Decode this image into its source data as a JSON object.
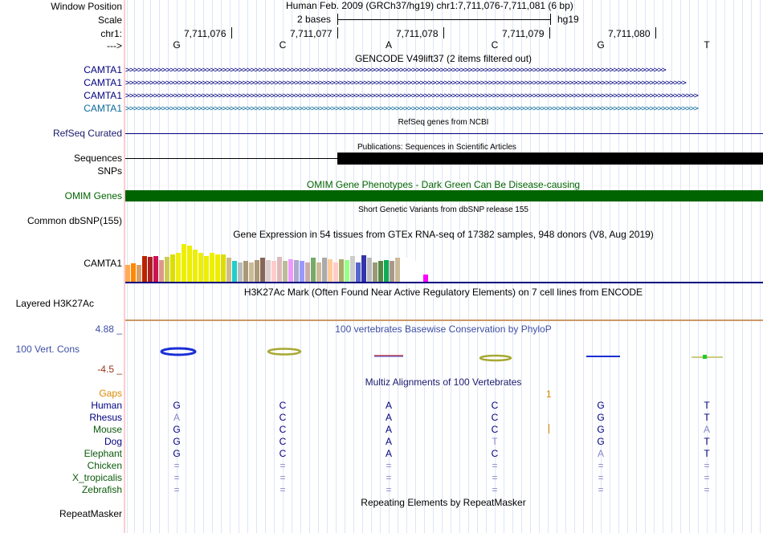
{
  "labels": {
    "window_position": "Window Position",
    "scale": "Scale",
    "chr": "chr1:",
    "arrow": "--->",
    "camta1_1": "CAMTA1",
    "camta1_2": "CAMTA1",
    "camta1_3": "CAMTA1",
    "camta1_4": "CAMTA1",
    "refseq": "RefSeq Curated",
    "sequences": "Sequences",
    "snps": "SNPs",
    "omim": "OMIM Genes",
    "dbsnp": "Common dbSNP(155)",
    "gtex_gene": "CAMTA1",
    "h3k27ac": "Layered H3K27Ac",
    "cons_max": "4.88 _",
    "cons_name": "100 Vert. Cons",
    "cons_min": "-4.5 _",
    "gaps": "Gaps",
    "human": "Human",
    "rhesus": "Rhesus",
    "mouse": "Mouse",
    "dog": "Dog",
    "elephant": "Elephant",
    "chicken": "Chicken",
    "xtrop": "X_tropicalis",
    "zebrafish": "Zebrafish",
    "repeatmasker": "RepeatMasker"
  },
  "header": {
    "position_text": "Human Feb. 2009 (GRCh37/hg19)   chr1:7,711,076-7,711,081 (6 bp)",
    "scale_text": "2 bases",
    "assembly": "hg19",
    "coords": [
      "7,711,076",
      "7,711,077",
      "7,711,078",
      "7,711,079",
      "7,711,080"
    ],
    "bases": [
      "G",
      "C",
      "A",
      "C",
      "G",
      "T"
    ]
  },
  "tracks": {
    "gencode_title": "GENCODE V49lift37 (2 items filtered out)",
    "refseq_title": "RefSeq genes from NCBI",
    "publications_title": "Publications: Sequences in Scientific Articles",
    "omim_title": "OMIM Gene Phenotypes - Dark Green Can Be Disease-causing",
    "dbsnp_title": "Short Genetic Variants from dbSNP release 155",
    "gtex_title": "Gene Expression in 54 tissues from GTEx RNA-seq of 17382 samples, 948 donors (V8, Aug 2019)",
    "h3k27ac_title": "H3K27Ac Mark (Often Found Near Active Regulatory Elements) on 7 cell lines from ENCODE",
    "phylop_title": "100 vertebrates Basewise Conservation by PhyloP",
    "multiz_title": "Multiz Alignments of 100 Vertebrates",
    "gap_mark": "1",
    "repeat_title": "Repeating Elements by RepeatMasker"
  },
  "alignment": {
    "human": [
      "G",
      "C",
      "A",
      "C",
      "G",
      "T"
    ],
    "rhesus": [
      "A",
      "C",
      "A",
      "C",
      "G",
      "T"
    ],
    "mouse": [
      "G",
      "C",
      "A",
      "C",
      "G",
      "A"
    ],
    "dog": [
      "G",
      "C",
      "A",
      "T",
      "G",
      "T"
    ],
    "elephant": [
      "G",
      "C",
      "A",
      "C",
      "A",
      "T"
    ],
    "chicken": [
      "=",
      "=",
      "=",
      "=",
      "=",
      "="
    ],
    "xtrop": [
      "=",
      "=",
      "=",
      "=",
      "=",
      "="
    ],
    "zebrafish": [
      "=",
      "=",
      "=",
      "=",
      "=",
      "="
    ]
  },
  "gtex": {
    "values": [
      0.42,
      0.45,
      0.42,
      0.62,
      0.6,
      0.62,
      0.53,
      0.6,
      0.66,
      0.7,
      0.92,
      0.88,
      0.78,
      0.7,
      0.62,
      0.7,
      0.66,
      0.66,
      0.58,
      0.5,
      0.48,
      0.5,
      0.48,
      0.52,
      0.58,
      0.52,
      0.5,
      0.6,
      0.5,
      0.55,
      0.52,
      0.5,
      0.48,
      0.58,
      0.48,
      0.58,
      0.55,
      0.48,
      0.55,
      0.52,
      0.62,
      0.48,
      0.65,
      0.58,
      0.48,
      0.5,
      0.52,
      0.5,
      0.58,
      0.48,
      0.58,
      0.5,
      0.42,
      0.18
    ],
    "colors": [
      "#ffaa55",
      "#ff8800",
      "#d9a066",
      "#bb2200",
      "#aa2222",
      "#cc1155",
      "#dd9988",
      "#cccc55",
      "#dddd00",
      "#eeee11",
      "#eeee00",
      "#eeee00",
      "#eeee00",
      "#eeee00",
      "#eeee00",
      "#eeee00",
      "#eeee00",
      "#dddd00",
      "#ccbb88",
      "#22cccc",
      "#bbbbbb",
      "#aa9977",
      "#ccbb99",
      "#aa9977",
      "#886655",
      "#ddcccc",
      "#ffcccc",
      "#ddbbbb",
      "#bbbb99",
      "#ee99ff",
      "#aaaacc",
      "#9999ff",
      "#ccaaaa",
      "#77aa66",
      "#ccbb99",
      "#aaaaaa",
      "#ffcc99",
      "#ffcccc",
      "#aaaa66",
      "#99ff88",
      "#cccccc",
      "#5566cc",
      "#3333aa",
      "#bbbbbb",
      "#999977",
      "#558844",
      "#11aa55",
      "#aa9988",
      "#ccbb99",
      "#ffffff",
      "#ffffff",
      "#ffffff",
      "#ffffff",
      "#ff00ff"
    ]
  },
  "colors": {
    "gene_blue": "#000080",
    "gene_teal": "#0b6a9a",
    "omim_green": "#006400",
    "cons_blue": "#3d4fa5",
    "cons_red": "#99331a",
    "gaps_orange": "#dd8800",
    "species_green": "#0a5a0a"
  }
}
